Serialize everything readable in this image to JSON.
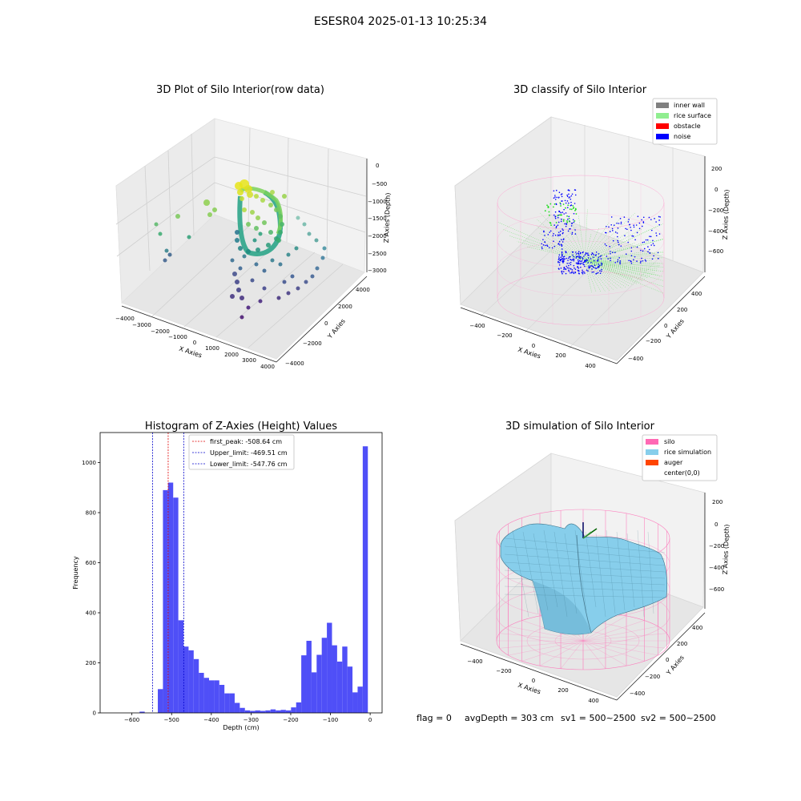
{
  "suptitle": "ESESR04 2025-01-13 10:25:34",
  "colors": {
    "hist_bar": "#4f4ff7",
    "peak_line": "#e00000",
    "limit_line": "#0000cc",
    "inner_wall": "#808080",
    "rice_surface": "#90ee90",
    "obstacle": "#ff0000",
    "noise": "#0000ff",
    "silo": "#ff69b4",
    "rice_simulation": "#87ceeb",
    "auger": "#ff4500"
  },
  "chart_data": [
    {
      "type": "scatter",
      "panel": "top-left",
      "title": "3D Plot of Silo Interior(row data)",
      "xlabel": "X Axies",
      "ylabel": "Y Axies",
      "zlabel": "Z Axies (Depth)",
      "x_ticks": [
        "−4000",
        "−3000",
        "−2000",
        "−1000",
        "0",
        "1000",
        "2000",
        "3000",
        "4000"
      ],
      "y_ticks": [
        "−4000",
        "−2000",
        "0",
        "2000",
        "4000"
      ],
      "z_ticks": [
        "0",
        "−500",
        "−1000",
        "−1500",
        "−2000",
        "−2500",
        "−3000"
      ],
      "xlim": [
        -4000,
        4000
      ],
      "ylim": [
        -4000,
        4000
      ],
      "zlim": [
        -3000,
        0
      ]
    },
    {
      "type": "scatter",
      "panel": "top-right",
      "title": "3D classify of Silo Interior",
      "xlabel": "X Axies",
      "ylabel": "Y Axies",
      "zlabel": "Z Axies (Depth)",
      "x_ticks": [
        "−400",
        "−200",
        "0",
        "200",
        "400"
      ],
      "y_ticks": [
        "−400",
        "−200",
        "0",
        "200",
        "400"
      ],
      "z_ticks": [
        "200",
        "0",
        "−200",
        "−400",
        "−600"
      ],
      "legend": [
        "inner wall",
        "rice surface",
        "obstacle",
        "noise"
      ],
      "legend_position": "top-right"
    },
    {
      "type": "bar",
      "panel": "bottom-left",
      "title": "Histogram of Z-Axies (Height) Values",
      "xlabel": "Depth (cm)",
      "ylabel": "Frequency",
      "xlim": [
        -680,
        30
      ],
      "ylim": [
        0,
        1120
      ],
      "x_ticks": [
        -600,
        -500,
        -400,
        -300,
        -200,
        -100,
        0
      ],
      "y_ticks": [
        0,
        200,
        400,
        600,
        800,
        1000
      ],
      "bin_width": 12.9,
      "bins": [
        [
          -580.6,
          5
        ],
        [
          -534.7,
          95
        ],
        [
          -521.8,
          890
        ],
        [
          -508.9,
          920
        ],
        [
          -496.0,
          860
        ],
        [
          -483.1,
          370
        ],
        [
          -470.2,
          265
        ],
        [
          -457.3,
          250
        ],
        [
          -444.4,
          215
        ],
        [
          -431.5,
          160
        ],
        [
          -418.6,
          140
        ],
        [
          -405.7,
          130
        ],
        [
          -392.8,
          130
        ],
        [
          -379.9,
          112
        ],
        [
          -367.0,
          78
        ],
        [
          -354.1,
          78
        ],
        [
          -341.2,
          40
        ],
        [
          -328.3,
          20
        ],
        [
          -315.4,
          10
        ],
        [
          -302.5,
          8
        ],
        [
          -289.6,
          10
        ],
        [
          -276.7,
          8
        ],
        [
          -263.8,
          10
        ],
        [
          -250.9,
          14
        ],
        [
          -238.0,
          10
        ],
        [
          -225.1,
          12
        ],
        [
          -212.2,
          10
        ],
        [
          -199.3,
          22
        ],
        [
          -186.4,
          42
        ],
        [
          -173.5,
          230
        ],
        [
          -160.6,
          288
        ],
        [
          -147.7,
          162
        ],
        [
          -134.8,
          232
        ],
        [
          -121.9,
          300
        ],
        [
          -109.0,
          360
        ],
        [
          -96.1,
          270
        ],
        [
          -83.2,
          205
        ],
        [
          -70.3,
          265
        ],
        [
          -57.4,
          185
        ],
        [
          -44.5,
          82
        ],
        [
          -31.6,
          105
        ],
        [
          -18.7,
          1065
        ]
      ],
      "vlines": [
        {
          "name": "first_peak: -508.64 cm",
          "x": -508.64,
          "color": "#e00000"
        },
        {
          "name": "Upper_limit: -469.51 cm",
          "x": -469.51,
          "color": "#0000cc"
        },
        {
          "name": "Lower_limit: -547.76 cm",
          "x": -547.76,
          "color": "#0000cc"
        }
      ],
      "legend_position": "top-left"
    },
    {
      "type": "area",
      "panel": "bottom-right",
      "title": "3D simulation of Silo Interior",
      "xlabel": "X Axies",
      "ylabel": "Y Axies",
      "zlabel": "Z Axies (Depth)",
      "x_ticks": [
        "−400",
        "−200",
        "0",
        "200",
        "400"
      ],
      "y_ticks": [
        "−400",
        "−200",
        "0",
        "200",
        "400"
      ],
      "z_ticks": [
        "200",
        "0",
        "−200",
        "−400",
        "−600"
      ],
      "legend": [
        "silo",
        "rice simulation",
        "auger",
        "center(0,0)"
      ],
      "legend_position": "top-right"
    }
  ],
  "footer": {
    "flag": "flag = 0",
    "avg_depth": "avgDepth = 303 cm",
    "sv1": "sv1 = 500~2500",
    "sv2": "sv2 = 500~2500"
  }
}
